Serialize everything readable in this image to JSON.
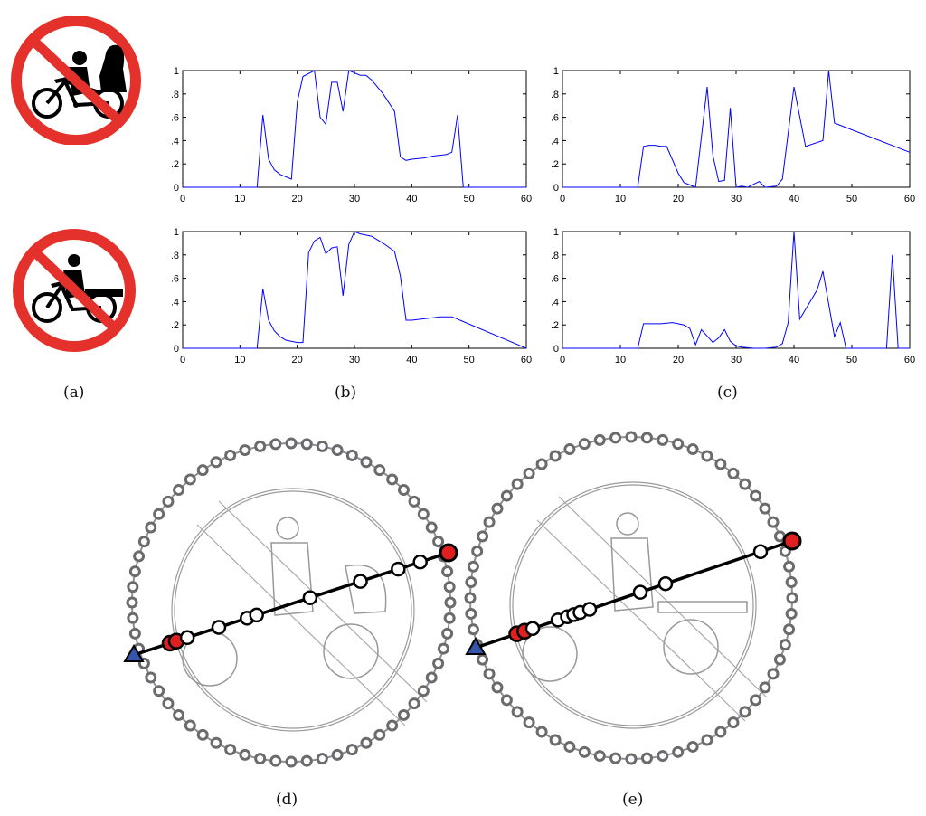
{
  "captions": {
    "a": "(a)",
    "b": "(b)",
    "c": "(c)",
    "d": "(d)",
    "e": "(e)"
  },
  "colors": {
    "sign_red": "#e5312b",
    "line_blue": "#0000ff",
    "bead_gray": "#6b6b6b",
    "point_red": "#e02020",
    "triangle_blue": "#3355aa"
  },
  "icons": [
    "no-pedicab-sign-icon",
    "no-tricycle-cart-sign-icon"
  ],
  "chart_data": [
    {
      "type": "line",
      "xlim": [
        0,
        60
      ],
      "ylim": [
        0,
        1
      ],
      "xticks": [
        0,
        10,
        20,
        30,
        40,
        50,
        60
      ],
      "yticks": [
        0,
        0.2,
        0.4,
        0.6,
        0.8,
        1
      ],
      "x": [
        0,
        13,
        14,
        15,
        16,
        17,
        19,
        20,
        21,
        23,
        24,
        25,
        26,
        27,
        28,
        29,
        30,
        31,
        32,
        33,
        35,
        37,
        38,
        39,
        40,
        42,
        44,
        46,
        47,
        48,
        49,
        60
      ],
      "values": [
        0,
        0,
        0.62,
        0.24,
        0.15,
        0.11,
        0.07,
        0.73,
        0.95,
        1.0,
        0.6,
        0.54,
        0.9,
        0.9,
        0.65,
        1.0,
        0.98,
        0.96,
        0.96,
        0.92,
        0.8,
        0.65,
        0.26,
        0.23,
        0.24,
        0.25,
        0.27,
        0.28,
        0.3,
        0.62,
        0,
        0
      ]
    },
    {
      "type": "line",
      "xlim": [
        0,
        60
      ],
      "ylim": [
        0,
        1
      ],
      "xticks": [
        0,
        10,
        20,
        30,
        40,
        50,
        60
      ],
      "yticks": [
        0,
        0.2,
        0.4,
        0.6,
        0.8,
        1
      ],
      "x": [
        0,
        13,
        14,
        15,
        16,
        17,
        18,
        20,
        21,
        22,
        23,
        25,
        26,
        27,
        28,
        29,
        30,
        31,
        32,
        34,
        35,
        37,
        38,
        40,
        42,
        45,
        46,
        47,
        60
      ],
      "values": [
        0,
        0,
        0.35,
        0.36,
        0.36,
        0.35,
        0.35,
        0.12,
        0.04,
        0.02,
        0.0,
        0.86,
        0.27,
        0.05,
        0.06,
        0.68,
        0.0,
        0.01,
        0.0,
        0.05,
        0.0,
        0.01,
        0.07,
        0.86,
        0.35,
        0.4,
        1.0,
        0.55,
        0.3
      ]
    },
    {
      "type": "line",
      "xlim": [
        0,
        60
      ],
      "ylim": [
        0,
        1
      ],
      "xticks": [
        0,
        10,
        20,
        30,
        40,
        50,
        60
      ],
      "yticks": [
        0,
        0.2,
        0.4,
        0.6,
        0.8,
        1
      ],
      "x": [
        0,
        13,
        14,
        15,
        16,
        17,
        18,
        20,
        21,
        22,
        23,
        24,
        25,
        26,
        27,
        28,
        29,
        30,
        31,
        32,
        33,
        35,
        37,
        38,
        39,
        40,
        45,
        47,
        60
      ],
      "values": [
        0,
        0,
        0.51,
        0.24,
        0.15,
        0.1,
        0.07,
        0.05,
        0.05,
        0.82,
        0.92,
        0.95,
        0.81,
        0.86,
        0.87,
        0.45,
        0.89,
        1.0,
        0.98,
        0.97,
        0.96,
        0.9,
        0.83,
        0.62,
        0.24,
        0.24,
        0.27,
        0.27,
        0
      ]
    },
    {
      "type": "line",
      "xlim": [
        0,
        60
      ],
      "ylim": [
        0,
        1
      ],
      "xticks": [
        0,
        10,
        20,
        30,
        40,
        50,
        60
      ],
      "yticks": [
        0,
        0.2,
        0.4,
        0.6,
        0.8,
        1
      ],
      "x": [
        0,
        13,
        14,
        15,
        17,
        19,
        20,
        21,
        22,
        23,
        24,
        26,
        27,
        28,
        29,
        30,
        31,
        33,
        35,
        37,
        38,
        39,
        40,
        41,
        44,
        45,
        47,
        48,
        49,
        56,
        57,
        58,
        60
      ],
      "values": [
        0,
        0,
        0.21,
        0.21,
        0.21,
        0.22,
        0.21,
        0.2,
        0.17,
        0.03,
        0.16,
        0.05,
        0.09,
        0.16,
        0.06,
        0.02,
        0.01,
        0.0,
        0.0,
        0.01,
        0.04,
        0.22,
        1.0,
        0.25,
        0.5,
        0.66,
        0.1,
        0.22,
        0.0,
        0.0,
        0.8,
        0.0,
        0.0
      ]
    }
  ]
}
